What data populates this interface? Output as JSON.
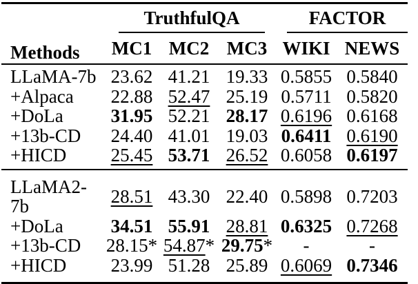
{
  "page": {
    "background": "#ffffff",
    "text_color": "#000000",
    "rule_color": "#000000"
  },
  "table": {
    "header": {
      "methods_label": "Methods",
      "groups": [
        {
          "label": "TruthfulQA",
          "subcolumns": [
            "MC1",
            "MC2",
            "MC3"
          ]
        },
        {
          "label": "FACTOR",
          "subcolumns": [
            "WIKI",
            "NEWS"
          ]
        }
      ]
    },
    "body": {
      "groups": [
        {
          "rows": [
            {
              "method": "LLaMA-7b",
              "cells": [
                {
                  "v": "23.62"
                },
                {
                  "v": "41.21"
                },
                {
                  "v": "19.33"
                },
                {
                  "v": "0.5855"
                },
                {
                  "v": "0.5840"
                }
              ]
            },
            {
              "method": "+Alpaca",
              "cells": [
                {
                  "v": "22.88"
                },
                {
                  "v": "52.47",
                  "style": "underline"
                },
                {
                  "v": "25.19"
                },
                {
                  "v": "0.5711"
                },
                {
                  "v": "0.5820"
                }
              ]
            },
            {
              "method": "+DoLa",
              "cells": [
                {
                  "v": "31.95",
                  "style": "bold"
                },
                {
                  "v": "52.21"
                },
                {
                  "v": "28.17",
                  "style": "bold"
                },
                {
                  "v": "0.6196",
                  "style": "underline"
                },
                {
                  "v": "0.6168"
                }
              ]
            },
            {
              "method": "+13b-CD",
              "cells": [
                {
                  "v": "24.40"
                },
                {
                  "v": "41.01"
                },
                {
                  "v": "19.03"
                },
                {
                  "v": "0.6411",
                  "style": "bold"
                },
                {
                  "v": "0.6190",
                  "style": "underline"
                }
              ]
            },
            {
              "method": "+HICD",
              "cells": [
                {
                  "v": "25.45",
                  "style": "underline"
                },
                {
                  "v": "53.71",
                  "style": "bold"
                },
                {
                  "v": "26.52",
                  "style": "underline"
                },
                {
                  "v": "0.6058"
                },
                {
                  "v": "0.6197",
                  "style": "bold"
                }
              ]
            }
          ]
        },
        {
          "rows": [
            {
              "method": "LLaMA2-7b",
              "cells": [
                {
                  "v": "28.51",
                  "style": "underline"
                },
                {
                  "v": "43.30"
                },
                {
                  "v": "22.40"
                },
                {
                  "v": "0.5898"
                },
                {
                  "v": "0.7203"
                }
              ]
            },
            {
              "method": "+DoLa",
              "cells": [
                {
                  "v": "34.51",
                  "style": "bold"
                },
                {
                  "v": "55.91",
                  "style": "bold"
                },
                {
                  "v": "28.81",
                  "style": "underline"
                },
                {
                  "v": "0.6325",
                  "style": "bold"
                },
                {
                  "v": "0.7268",
                  "style": "underline"
                }
              ]
            },
            {
              "method": "+13b-CD",
              "cells": [
                {
                  "v": "28.15",
                  "suffix": "*"
                },
                {
                  "v": "54.87",
                  "style": "underline",
                  "suffix": "*"
                },
                {
                  "v": "29.75",
                  "style": "bold",
                  "suffix": "*"
                },
                {
                  "v": "-"
                },
                {
                  "v": "-"
                }
              ]
            },
            {
              "method": "+HICD",
              "cells": [
                {
                  "v": "23.99"
                },
                {
                  "v": "51.28"
                },
                {
                  "v": "25.89"
                },
                {
                  "v": "0.6069",
                  "style": "underline"
                },
                {
                  "v": "0.7346",
                  "style": "bold"
                }
              ]
            }
          ]
        }
      ]
    }
  }
}
